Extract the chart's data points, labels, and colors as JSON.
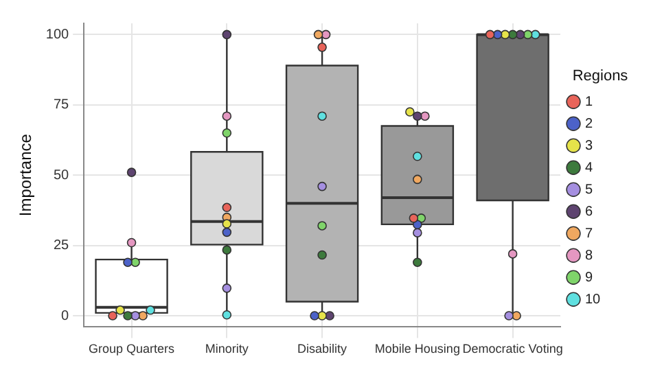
{
  "chart_data": {
    "type": "box",
    "ylabel": "Importance",
    "legend_title": "Regions",
    "legend": "right",
    "grid": true,
    "marker": "circle",
    "categories": [
      "Group Quarters",
      "Minority",
      "Disability",
      "Mobile Housing",
      "Democratic Voting"
    ],
    "colors": [
      "#ffffff",
      "#d9d9d9",
      "#b3b3b3",
      "#999999",
      "#6e6e6e"
    ],
    "ylim": [
      -4,
      104
    ],
    "yticks": [
      0,
      25,
      50,
      75,
      100
    ],
    "boxes": [
      {
        "low": 0,
        "q1": 1,
        "median": 3,
        "q3": 20,
        "high": 26
      },
      {
        "low": 0,
        "q1": 25.3,
        "median": 33.5,
        "q3": 58.3,
        "high": 100
      },
      {
        "low": 0,
        "q1": 5,
        "median": 40,
        "q3": 89,
        "high": 100
      },
      {
        "low": 19,
        "q1": 32.5,
        "median": 42,
        "q3": 67.5,
        "high": 72.5
      },
      {
        "low": 0,
        "q1": 41,
        "median": 100,
        "q3": 100,
        "high": 100
      }
    ],
    "series": [
      {
        "name": "1",
        "type": "scatter",
        "color": "#e8645a",
        "x": [
          "Group Quarters",
          "Minority",
          "Disability",
          "Mobile Housing",
          "Democratic Voting"
        ],
        "values": [
          0,
          38.5,
          95.5,
          34.7,
          100
        ]
      },
      {
        "name": "2",
        "type": "scatter",
        "color": "#4c62c8",
        "x": [
          "Group Quarters",
          "Minority",
          "Disability",
          "Mobile Housing",
          "Democratic Voting"
        ],
        "values": [
          19,
          29.7,
          0,
          32.4,
          100
        ]
      },
      {
        "name": "3",
        "type": "scatter",
        "color": "#e6e34a",
        "x": [
          "Group Quarters",
          "Minority",
          "Disability",
          "Mobile Housing",
          "Democratic Voting"
        ],
        "values": [
          2,
          32.7,
          0,
          72.5,
          100
        ]
      },
      {
        "name": "4",
        "type": "scatter",
        "color": "#3d7a3d",
        "x": [
          "Group Quarters",
          "Minority",
          "Disability",
          "Mobile Housing",
          "Democratic Voting"
        ],
        "values": [
          0,
          23.4,
          21.6,
          19,
          100
        ]
      },
      {
        "name": "5",
        "type": "scatter",
        "color": "#a58fe0",
        "x": [
          "Group Quarters",
          "Minority",
          "Disability",
          "Mobile Housing",
          "Democratic Voting"
        ],
        "values": [
          0,
          9.8,
          46,
          29.5,
          0
        ]
      },
      {
        "name": "6",
        "type": "scatter",
        "color": "#5e4470",
        "x": [
          "Group Quarters",
          "Minority",
          "Disability",
          "Mobile Housing",
          "Democratic Voting"
        ],
        "values": [
          51,
          100,
          0,
          71,
          100
        ]
      },
      {
        "name": "7",
        "type": "scatter",
        "color": "#f0a860",
        "x": [
          "Group Quarters",
          "Minority",
          "Disability",
          "Mobile Housing",
          "Democratic Voting"
        ],
        "values": [
          0,
          35,
          100,
          48.5,
          0
        ]
      },
      {
        "name": "8",
        "type": "scatter",
        "color": "#e497c1",
        "x": [
          "Group Quarters",
          "Minority",
          "Disability",
          "Mobile Housing",
          "Democratic Voting"
        ],
        "values": [
          26,
          71,
          100,
          71,
          22
        ]
      },
      {
        "name": "9",
        "type": "scatter",
        "color": "#7fd46a",
        "x": [
          "Group Quarters",
          "Minority",
          "Disability",
          "Mobile Housing",
          "Democratic Voting"
        ],
        "values": [
          19,
          65,
          32,
          34.7,
          100
        ]
      },
      {
        "name": "10",
        "type": "scatter",
        "color": "#5fe0e0",
        "x": [
          "Group Quarters",
          "Minority",
          "Disability",
          "Mobile Housing",
          "Democratic Voting"
        ],
        "values": [
          2,
          0.3,
          71,
          56.7,
          100
        ]
      }
    ]
  }
}
